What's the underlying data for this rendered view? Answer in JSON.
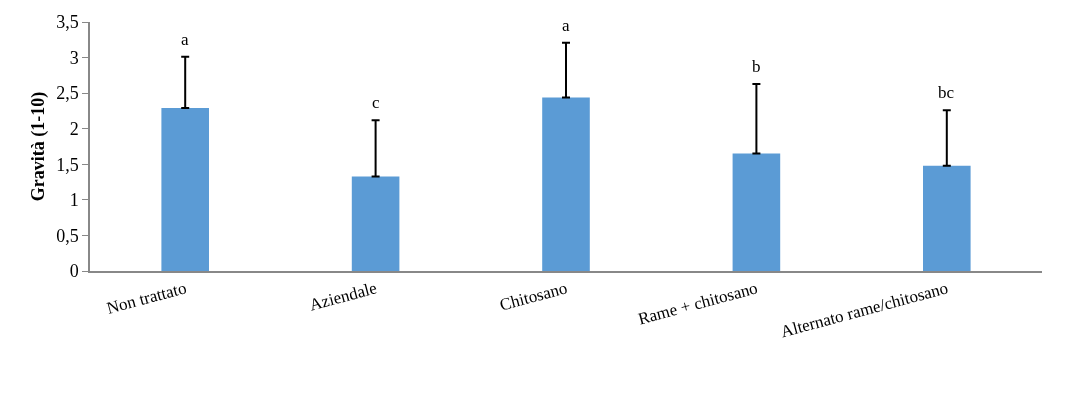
{
  "chart_data": {
    "type": "bar",
    "ylabel": "Gravità (1-10)",
    "categories": [
      "Non trattato",
      "Aziendale",
      "Chitosano",
      "Rame + chitosano",
      "Alternato rame/chitosano"
    ],
    "values": [
      2.29,
      1.33,
      2.44,
      1.65,
      1.48
    ],
    "color": "#5b9bd5",
    "errors": [
      [
        2.29,
        3.01
      ],
      [
        1.33,
        2.12
      ],
      [
        2.44,
        3.21
      ],
      [
        1.65,
        2.63
      ],
      [
        1.48,
        2.26
      ]
    ],
    "ylim": [
      0,
      3.5
    ],
    "yticks": [
      0,
      {
        "value": 0.5,
        "label": "0,5"
      },
      1,
      {
        "value": 1.5,
        "label": "1,5"
      },
      2,
      {
        "value": 2.5,
        "label": "2,5"
      },
      3,
      {
        "value": 3.5,
        "label": "3,5"
      }
    ],
    "grid": false,
    "annotations": [
      {
        "text": "a",
        "x": "Non trattato",
        "y": 3.01
      },
      {
        "text": "c",
        "x": "Aziendale",
        "y": 2.12
      },
      {
        "text": "a",
        "x": "Chitosano",
        "y": 3.21
      },
      {
        "text": "b",
        "x": "Rame + chitosano",
        "y": 2.63
      },
      {
        "text": "bc",
        "x": "Alternato rame/chitosano",
        "y": 2.26
      }
    ]
  }
}
